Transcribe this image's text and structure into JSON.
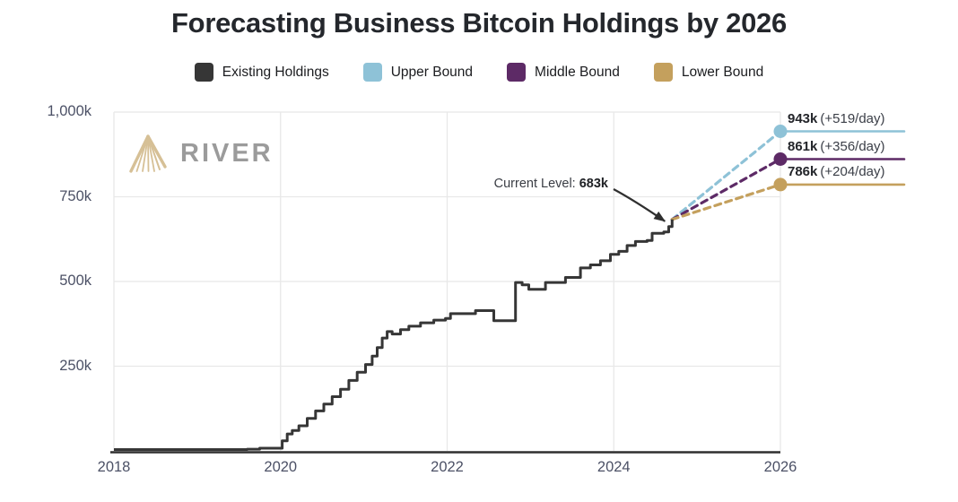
{
  "chart": {
    "title": "Forecasting Business Bitcoin Holdings by 2026"
  },
  "legend": {
    "items": [
      {
        "label": "Existing Holdings",
        "color": "#363636"
      },
      {
        "label": "Upper Bound",
        "color": "#8ec2d7"
      },
      {
        "label": "Middle Bound",
        "color": "#5d2a66"
      },
      {
        "label": "Lower Bound",
        "color": "#c4a05d"
      }
    ]
  },
  "watermark": {
    "text": "RIVER"
  },
  "annotation": {
    "prefix": "Current Level: ",
    "value": "683k"
  },
  "colors": {
    "existing": "#363636",
    "upper": "#8ec2d7",
    "middle": "#5d2a66",
    "lower": "#c4a05d",
    "grid": "#e8e8e8",
    "axis": "#2f2f2f",
    "tick_text": "#4c5166"
  },
  "chart_data": {
    "type": "line",
    "title": "Forecasting Business Bitcoin Holdings by 2026",
    "xlabel": "",
    "ylabel": "",
    "unit": "thousand BTC (k)",
    "xlim": [
      2018,
      2026
    ],
    "ylim": [
      0,
      1000
    ],
    "grid": true,
    "x_ticks": [
      2018,
      2020,
      2022,
      2024,
      2026
    ],
    "x_tick_labels": [
      "2018",
      "2020",
      "2022",
      "2024",
      "2026"
    ],
    "y_ticks": [
      250,
      500,
      750,
      1000
    ],
    "y_tick_labels": [
      "250k",
      "500k",
      "750k",
      "1,000k"
    ],
    "current_level": 683,
    "annotation_text": "Current Level: 683k",
    "series": [
      {
        "name": "Existing Holdings",
        "color": "#363636",
        "style": "step",
        "points": [
          [
            2018.0,
            4
          ],
          [
            2019.6,
            5
          ],
          [
            2019.75,
            8
          ],
          [
            2019.95,
            8
          ],
          [
            2020.02,
            30
          ],
          [
            2020.08,
            50
          ],
          [
            2020.14,
            60
          ],
          [
            2020.22,
            74
          ],
          [
            2020.32,
            96
          ],
          [
            2020.42,
            118
          ],
          [
            2020.52,
            138
          ],
          [
            2020.62,
            160
          ],
          [
            2020.72,
            182
          ],
          [
            2020.82,
            208
          ],
          [
            2020.92,
            232
          ],
          [
            2021.02,
            255
          ],
          [
            2021.1,
            280
          ],
          [
            2021.16,
            305
          ],
          [
            2021.22,
            333
          ],
          [
            2021.28,
            352
          ],
          [
            2021.34,
            345
          ],
          [
            2021.44,
            358
          ],
          [
            2021.54,
            368
          ],
          [
            2021.68,
            378
          ],
          [
            2021.84,
            386
          ],
          [
            2021.98,
            391
          ],
          [
            2022.04,
            405
          ],
          [
            2022.28,
            405
          ],
          [
            2022.34,
            414
          ],
          [
            2022.5,
            414
          ],
          [
            2022.56,
            384
          ],
          [
            2022.76,
            384
          ],
          [
            2022.82,
            497
          ],
          [
            2022.9,
            490
          ],
          [
            2022.98,
            477
          ],
          [
            2023.12,
            477
          ],
          [
            2023.18,
            497
          ],
          [
            2023.34,
            497
          ],
          [
            2023.42,
            512
          ],
          [
            2023.52,
            512
          ],
          [
            2023.6,
            540
          ],
          [
            2023.72,
            549
          ],
          [
            2023.84,
            561
          ],
          [
            2023.96,
            580
          ],
          [
            2024.06,
            589
          ],
          [
            2024.16,
            606
          ],
          [
            2024.26,
            618
          ],
          [
            2024.4,
            621
          ],
          [
            2024.46,
            642
          ],
          [
            2024.6,
            646
          ],
          [
            2024.66,
            662
          ],
          [
            2024.7,
            683
          ]
        ]
      },
      {
        "name": "Upper Bound",
        "color": "#8ec2d7",
        "style": "dashed",
        "points": [
          [
            2024.7,
            683
          ],
          [
            2026,
            943
          ]
        ],
        "end_value": 943,
        "end_label": "943k",
        "rate_label": "(+519/day)"
      },
      {
        "name": "Middle Bound",
        "color": "#5d2a66",
        "style": "dashed",
        "points": [
          [
            2024.7,
            683
          ],
          [
            2026,
            861
          ]
        ],
        "end_value": 861,
        "end_label": "861k",
        "rate_label": "(+356/day)"
      },
      {
        "name": "Lower Bound",
        "color": "#c4a05d",
        "style": "dashed",
        "points": [
          [
            2024.7,
            683
          ],
          [
            2026,
            786
          ]
        ],
        "end_value": 786,
        "end_label": "786k",
        "rate_label": "(+204/day)"
      }
    ]
  }
}
